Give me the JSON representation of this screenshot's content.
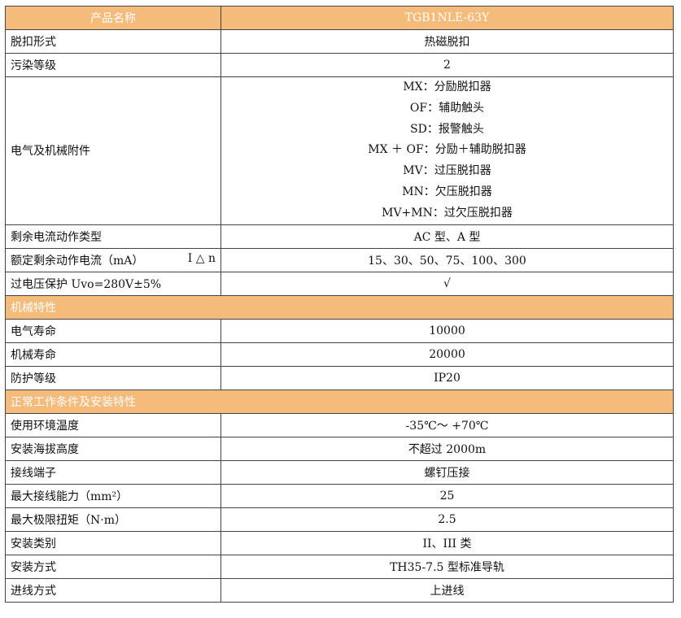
{
  "header": {
    "label": "产品名称",
    "value": "TGB1NLE-63Y"
  },
  "colors": {
    "header_bg": "#F5BB7A"
  },
  "rows1": [
    {
      "label": "脱扣形式",
      "value": "热磁脱扣"
    },
    {
      "label": "污染等级",
      "value": "2"
    }
  ],
  "accessories": {
    "label": "电气及机械附件",
    "values": [
      "MX：分励脱扣器",
      "OF：辅助触头",
      "SD：报警触头",
      "MX ＋ OF：分励＋辅助脱扣器",
      "MV：过压脱扣器",
      "MN：欠压脱扣器",
      "MV+MN：过欠压脱扣器"
    ]
  },
  "rows2": [
    {
      "label": "剩余电流动作类型",
      "value": "AC 型、A 型"
    },
    {
      "label": "额定剩余动作电流（mA）",
      "label_suffix": "I △ n",
      "value": "15、30、50、75、100、300"
    },
    {
      "label": "过电压保护 Uvo=280V±5%",
      "value": "√"
    }
  ],
  "section1": {
    "title": "机械特性",
    "rows": [
      {
        "label": "电气寿命",
        "value": "10000"
      },
      {
        "label": "机械寿命",
        "value": "20000"
      },
      {
        "label": "防护等级",
        "value": "IP20"
      }
    ]
  },
  "section2": {
    "title": "正常工作条件及安装特性",
    "rows": [
      {
        "label": "使用环境温度",
        "value": "-35℃～ +70℃"
      },
      {
        "label": "安装海拔高度",
        "value": "不超过 2000m"
      },
      {
        "label": "接线端子",
        "value": "螺钉压接"
      },
      {
        "label": "最大接线能力（mm²）",
        "value": "25"
      },
      {
        "label": "最大极限扭矩（N·m）",
        "value": "2.5"
      },
      {
        "label": "安装类别",
        "value": "II、III 类"
      },
      {
        "label": "安装方式",
        "value": "TH35-7.5 型标准导轨"
      },
      {
        "label": "进线方式",
        "value": "上进线"
      }
    ]
  }
}
